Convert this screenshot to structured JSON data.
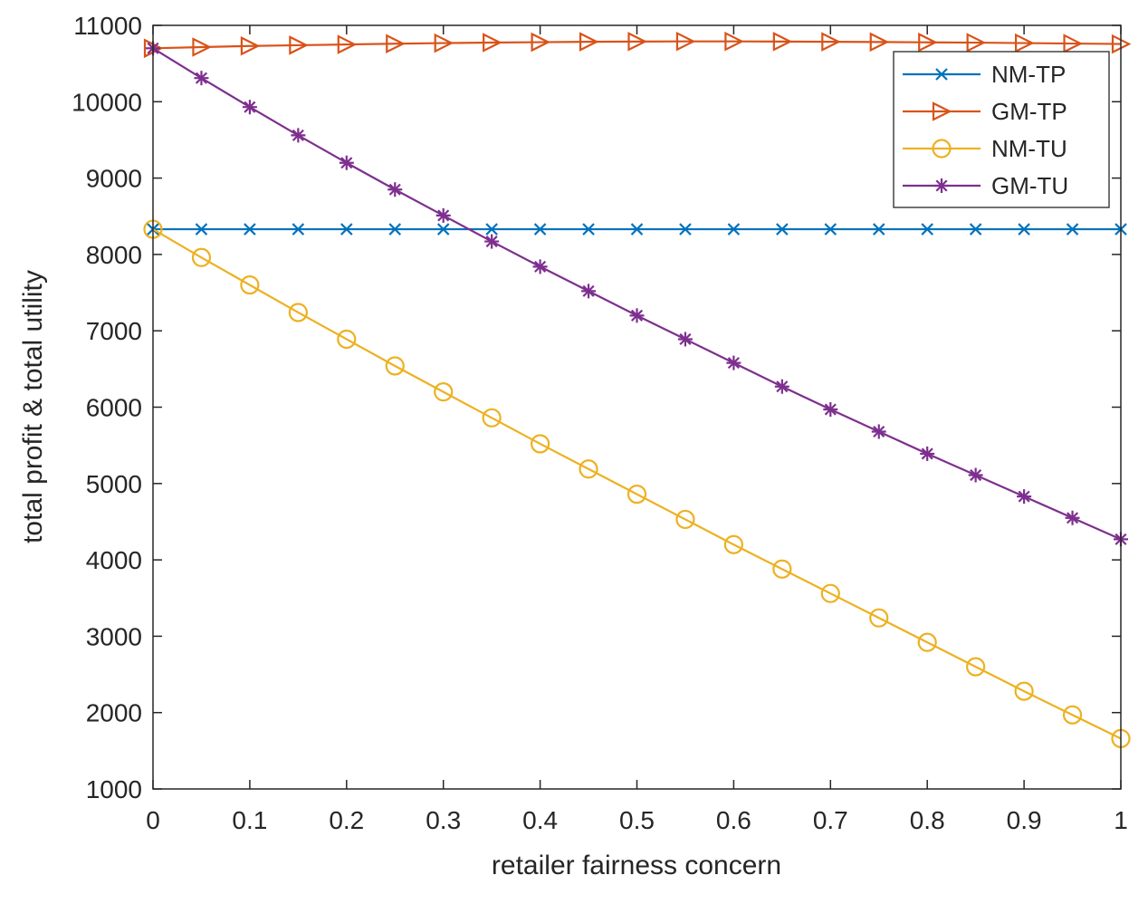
{
  "chart_data": {
    "type": "line",
    "title": "",
    "xlabel": "retailer fairness concern",
    "ylabel": "total profit & total utility",
    "xlim": [
      0,
      1
    ],
    "ylim": [
      1000,
      11000
    ],
    "xticks": [
      0,
      0.1,
      0.2,
      0.3,
      0.4,
      0.5,
      0.6,
      0.7,
      0.8,
      0.9,
      1
    ],
    "xtick_labels": [
      "0",
      "0.1",
      "0.2",
      "0.3",
      "0.4",
      "0.5",
      "0.6",
      "0.7",
      "0.8",
      "0.9",
      "1"
    ],
    "yticks": [
      1000,
      2000,
      3000,
      4000,
      5000,
      6000,
      7000,
      8000,
      9000,
      10000,
      11000
    ],
    "ytick_labels": [
      "1000",
      "2000",
      "3000",
      "4000",
      "5000",
      "6000",
      "7000",
      "8000",
      "9000",
      "10000",
      "11000"
    ],
    "grid": false,
    "legend_position": "top-right",
    "x": [
      0,
      0.05,
      0.1,
      0.15,
      0.2,
      0.25,
      0.3,
      0.35,
      0.4,
      0.45,
      0.5,
      0.55,
      0.6,
      0.65,
      0.7,
      0.75,
      0.8,
      0.85,
      0.9,
      0.95,
      1
    ],
    "series": [
      {
        "name": "NM-TP",
        "color": "#0072BD",
        "marker": "x",
        "values": [
          8330,
          8330,
          8330,
          8330,
          8330,
          8330,
          8330,
          8330,
          8330,
          8330,
          8330,
          8330,
          8330,
          8330,
          8330,
          8330,
          8330,
          8330,
          8330,
          8330,
          8330
        ]
      },
      {
        "name": "GM-TP",
        "color": "#D95319",
        "marker": "triangle-right",
        "values": [
          10700,
          10715,
          10730,
          10740,
          10750,
          10760,
          10768,
          10775,
          10780,
          10785,
          10788,
          10790,
          10790,
          10788,
          10785,
          10782,
          10778,
          10774,
          10768,
          10762,
          10756
        ]
      },
      {
        "name": "NM-TU",
        "color": "#EDB120",
        "marker": "circle",
        "values": [
          8330,
          7960,
          7600,
          7240,
          6890,
          6540,
          6200,
          5860,
          5520,
          5190,
          4860,
          4530,
          4200,
          3880,
          3560,
          3240,
          2920,
          2600,
          2280,
          1970,
          1660
        ]
      },
      {
        "name": "GM-TU",
        "color": "#7E2F8E",
        "marker": "asterisk",
        "values": [
          10700,
          10310,
          9930,
          9560,
          9200,
          8850,
          8510,
          8170,
          7840,
          7520,
          7200,
          6890,
          6580,
          6270,
          5970,
          5680,
          5390,
          5110,
          4830,
          4550,
          4270
        ]
      }
    ]
  }
}
